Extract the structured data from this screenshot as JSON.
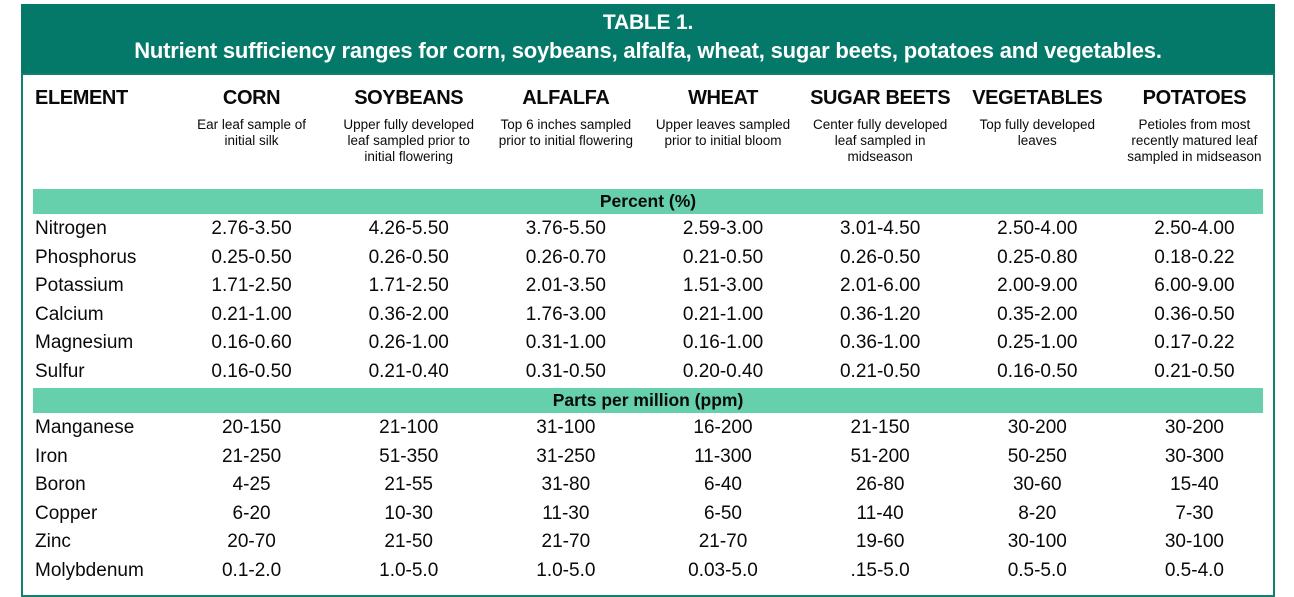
{
  "title": {
    "line1": "TABLE 1.",
    "line2": "Nutrient sufficiency ranges for corn, soybeans, alfalfa, wheat, sugar beets, potatoes and vegetables."
  },
  "colors": {
    "header_bg": "#04796A",
    "band_bg": "#66CFAC",
    "border": "#12806F",
    "header_text": "#FFFFFF",
    "body_text": "#0A0A0A"
  },
  "columns": [
    {
      "label": "ELEMENT",
      "description": ""
    },
    {
      "label": "CORN",
      "description": "Ear leaf sample of initial silk"
    },
    {
      "label": "SOYBEANS",
      "description": "Upper fully developed leaf sampled prior to initial flowering"
    },
    {
      "label": "ALFALFA",
      "description": "Top 6 inches sampled prior to initial flowering"
    },
    {
      "label": "WHEAT",
      "description": "Upper leaves sampled prior to initial bloom"
    },
    {
      "label": "SUGAR BEETS",
      "description": "Center fully developed leaf sampled in midseason"
    },
    {
      "label": "VEGETABLES",
      "description": "Top fully developed leaves"
    },
    {
      "label": "POTATOES",
      "description": "Petioles from most recently matured leaf sampled in midseason"
    }
  ],
  "sections": [
    {
      "band_label": "Percent (%)",
      "rows": [
        {
          "element": "Nitrogen",
          "values": [
            "2.76-3.50",
            "4.26-5.50",
            "3.76-5.50",
            "2.59-3.00",
            "3.01-4.50",
            "2.50-4.00",
            "2.50-4.00"
          ]
        },
        {
          "element": "Phosphorus",
          "values": [
            "0.25-0.50",
            "0.26-0.50",
            "0.26-0.70",
            "0.21-0.50",
            "0.26-0.50",
            "0.25-0.80",
            "0.18-0.22"
          ]
        },
        {
          "element": "Potassium",
          "values": [
            "1.71-2.50",
            "1.71-2.50",
            "2.01-3.50",
            "1.51-3.00",
            "2.01-6.00",
            "2.00-9.00",
            "6.00-9.00"
          ]
        },
        {
          "element": "Calcium",
          "values": [
            "0.21-1.00",
            "0.36-2.00",
            "1.76-3.00",
            "0.21-1.00",
            "0.36-1.20",
            "0.35-2.00",
            "0.36-0.50"
          ]
        },
        {
          "element": "Magnesium",
          "values": [
            "0.16-0.60",
            "0.26-1.00",
            "0.31-1.00",
            "0.16-1.00",
            "0.36-1.00",
            "0.25-1.00",
            "0.17-0.22"
          ]
        },
        {
          "element": "Sulfur",
          "values": [
            "0.16-0.50",
            "0.21-0.40",
            "0.31-0.50",
            "0.20-0.40",
            "0.21-0.50",
            "0.16-0.50",
            "0.21-0.50"
          ]
        }
      ]
    },
    {
      "band_label": "Parts per million (ppm)",
      "rows": [
        {
          "element": "Manganese",
          "values": [
            "20-150",
            "21-100",
            "31-100",
            "16-200",
            "21-150",
            "30-200",
            "30-200"
          ]
        },
        {
          "element": "Iron",
          "values": [
            "21-250",
            "51-350",
            "31-250",
            "11-300",
            "51-200",
            "50-250",
            "30-300"
          ]
        },
        {
          "element": "Boron",
          "values": [
            "4-25",
            "21-55",
            "31-80",
            "6-40",
            "26-80",
            "30-60",
            "15-40"
          ]
        },
        {
          "element": "Copper",
          "values": [
            "6-20",
            "10-30",
            "11-30",
            "6-50",
            "11-40",
            "8-20",
            "7-30"
          ]
        },
        {
          "element": "Zinc",
          "values": [
            "20-70",
            "21-50",
            "21-70",
            "21-70",
            "19-60",
            "30-100",
            "30-100"
          ]
        },
        {
          "element": "Molybdenum",
          "values": [
            "0.1-2.0",
            "1.0-5.0",
            "1.0-5.0",
            "0.03-5.0",
            ".15-5.0",
            "0.5-5.0",
            "0.5-4.0"
          ]
        }
      ]
    }
  ]
}
